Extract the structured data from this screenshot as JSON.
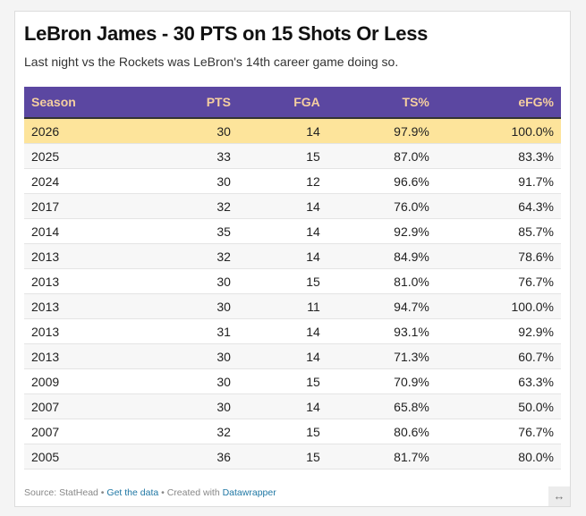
{
  "title": "LeBron James - 30 PTS on 15 Shots Or Less",
  "subtitle": "Last night vs the Rockets was LeBron's 14th career game doing so.",
  "table": {
    "headers": [
      "Season",
      "PTS",
      "FGA",
      "TS%",
      "eFG%"
    ],
    "rows": [
      [
        "2026",
        "30",
        "14",
        "97.9%",
        "100.0%"
      ],
      [
        "2025",
        "33",
        "15",
        "87.0%",
        "83.3%"
      ],
      [
        "2024",
        "30",
        "12",
        "96.6%",
        "91.7%"
      ],
      [
        "2017",
        "32",
        "14",
        "76.0%",
        "64.3%"
      ],
      [
        "2014",
        "35",
        "14",
        "92.9%",
        "85.7%"
      ],
      [
        "2013",
        "32",
        "14",
        "84.9%",
        "78.6%"
      ],
      [
        "2013",
        "30",
        "15",
        "81.0%",
        "76.7%"
      ],
      [
        "2013",
        "30",
        "11",
        "94.7%",
        "100.0%"
      ],
      [
        "2013",
        "31",
        "14",
        "93.1%",
        "92.9%"
      ],
      [
        "2013",
        "30",
        "14",
        "71.3%",
        "60.7%"
      ],
      [
        "2009",
        "30",
        "15",
        "70.9%",
        "63.3%"
      ],
      [
        "2007",
        "30",
        "14",
        "65.8%",
        "50.0%"
      ],
      [
        "2007",
        "32",
        "15",
        "80.6%",
        "76.7%"
      ],
      [
        "2005",
        "36",
        "15",
        "81.7%",
        "80.0%"
      ]
    ]
  },
  "footer": {
    "source": "Source: StatHead",
    "sep": " • ",
    "get_data": "Get the data",
    "created": "Created with",
    "datawrapper": "Datawrapper"
  },
  "resize_icon": "↔",
  "colors": {
    "header_bg": "#5b47a1",
    "header_text": "#f5cfa0",
    "highlight": "#fde49b"
  }
}
